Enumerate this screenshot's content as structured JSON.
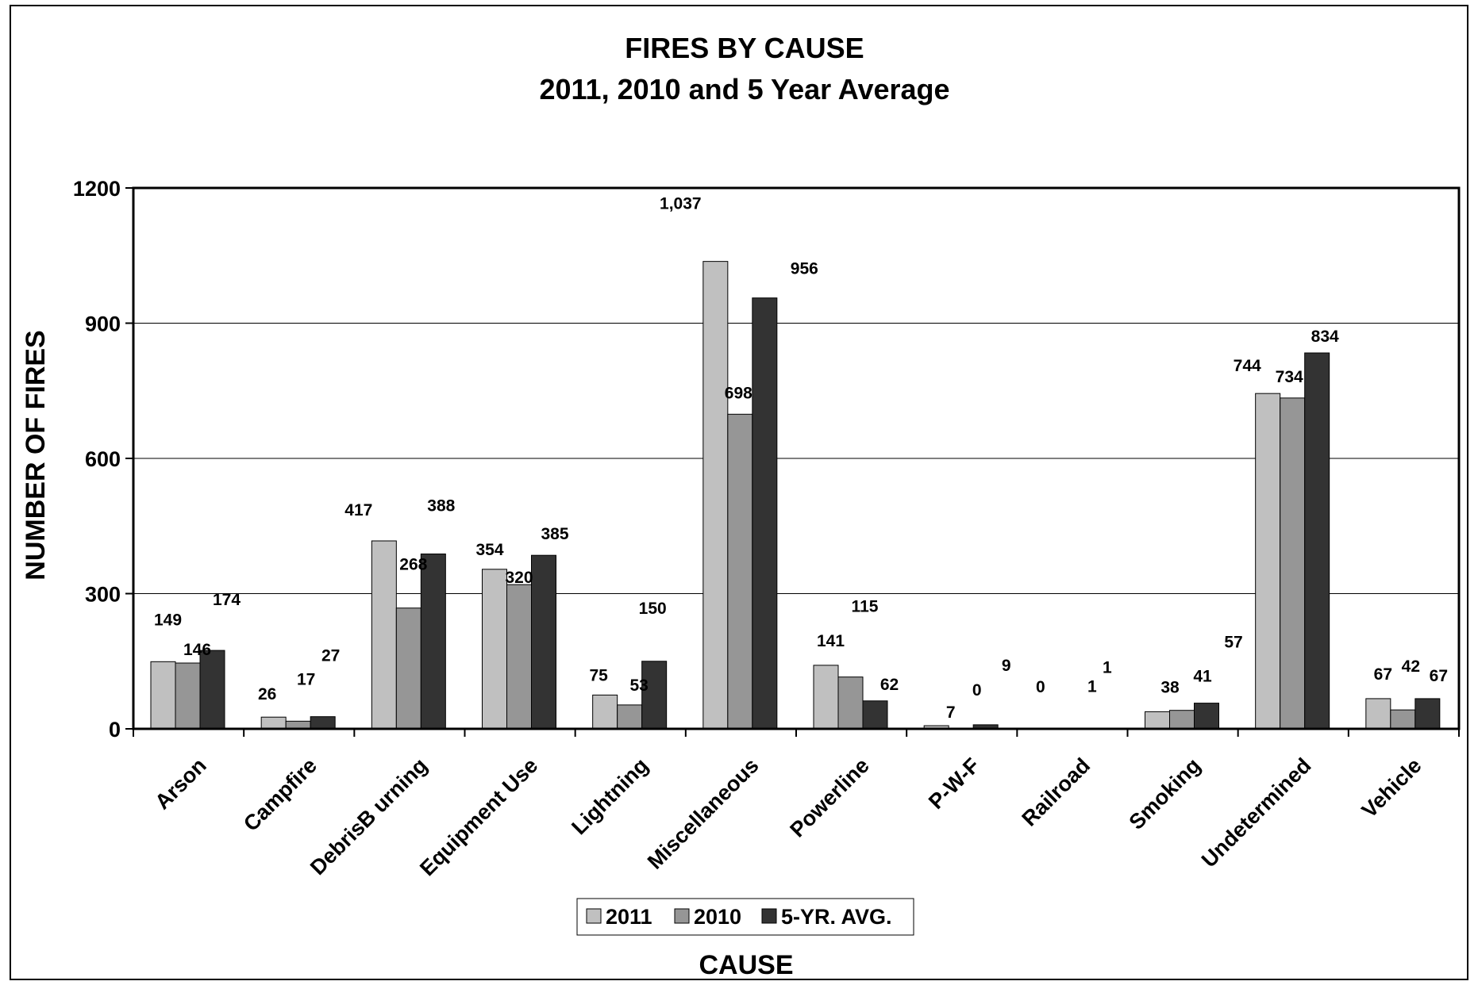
{
  "chart_data": {
    "type": "bar",
    "title": "FIRES BY CAUSE",
    "subtitle": "2011, 2010 and 5 Year Average",
    "xlabel": "CAUSE",
    "ylabel": "NUMBER OF FIRES",
    "ylim": [
      0,
      1200
    ],
    "yticks": [
      "0",
      "300",
      "600",
      "900",
      "1200"
    ],
    "grid": true,
    "legend_position": "bottom",
    "categories": [
      "Arson",
      "Campfire",
      "DebrisB urning",
      "Equipment Use",
      "Lightning",
      "Miscellaneous",
      "Powerline",
      "P-W-F",
      "Railroad",
      "Smoking",
      "Undetermined",
      "Vehicle"
    ],
    "series": [
      {
        "name": "2011",
        "color": "#c0c0c0",
        "values": [
          149,
          26,
          417,
          354,
          75,
          1037,
          141,
          7,
          0,
          38,
          744,
          67
        ],
        "labels": [
          "149",
          "26",
          "417",
          "354",
          "75",
          "1,037",
          "141",
          "7",
          "0",
          "38",
          "744",
          "67"
        ]
      },
      {
        "name": "2010",
        "color": "#969696",
        "values": [
          146,
          17,
          268,
          320,
          53,
          698,
          115,
          0,
          1,
          41,
          734,
          42
        ],
        "labels": [
          "146",
          "17",
          "268",
          "320",
          "53",
          "698",
          "115",
          "0",
          "1",
          "41",
          "734",
          "42"
        ]
      },
      {
        "name": "5-YR. AVG.",
        "color": "#333333",
        "values": [
          174,
          27,
          388,
          385,
          150,
          956,
          62,
          9,
          1,
          57,
          834,
          67
        ],
        "labels": [
          "174",
          "27",
          "388",
          "385",
          "150",
          "956",
          "62",
          "9",
          "1",
          "57",
          "834",
          "67"
        ]
      }
    ]
  }
}
